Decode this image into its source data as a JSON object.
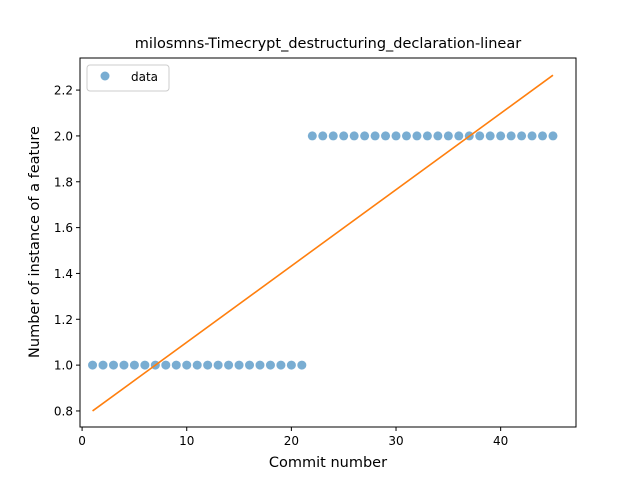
{
  "chart_data": {
    "type": "scatter",
    "title": "milosmns-Timecrypt_destructuring_declaration-linear",
    "xlabel": "Commit number",
    "ylabel": "Number of instance of a feature",
    "xlim": [
      -0.2,
      47.2
    ],
    "ylim": [
      0.73,
      2.34
    ],
    "xticks": [
      0,
      10,
      20,
      30,
      40
    ],
    "yticks": [
      0.8,
      1.0,
      1.2,
      1.4,
      1.6,
      1.8,
      2.0,
      2.2
    ],
    "xtick_labels": [
      "0",
      "10",
      "20",
      "30",
      "40"
    ],
    "ytick_labels": [
      "0.8",
      "1.0",
      "1.2",
      "1.4",
      "1.6",
      "1.8",
      "2.0",
      "2.2"
    ],
    "legend": {
      "position": "top-left",
      "entries": [
        {
          "label": "data"
        }
      ]
    },
    "grid": false,
    "series": [
      {
        "name": "data",
        "kind": "scatter",
        "color": "#1f77b4",
        "x": [
          1,
          2,
          3,
          4,
          5,
          6,
          7,
          8,
          9,
          10,
          11,
          12,
          13,
          14,
          15,
          16,
          17,
          18,
          19,
          20,
          21,
          22,
          23,
          24,
          25,
          26,
          27,
          28,
          29,
          30,
          31,
          32,
          33,
          34,
          35,
          36,
          37,
          38,
          39,
          40,
          41,
          42,
          43,
          44,
          45
        ],
        "y": [
          1,
          1,
          1,
          1,
          1,
          1,
          1,
          1,
          1,
          1,
          1,
          1,
          1,
          1,
          1,
          1,
          1,
          1,
          1,
          1,
          1,
          2,
          2,
          2,
          2,
          2,
          2,
          2,
          2,
          2,
          2,
          2,
          2,
          2,
          2,
          2,
          2,
          2,
          2,
          2,
          2,
          2,
          2,
          2,
          2
        ]
      },
      {
        "kind": "line",
        "color": "#ff7f0e",
        "x": [
          1,
          45
        ],
        "y": [
          0.8,
          2.265
        ]
      }
    ]
  }
}
